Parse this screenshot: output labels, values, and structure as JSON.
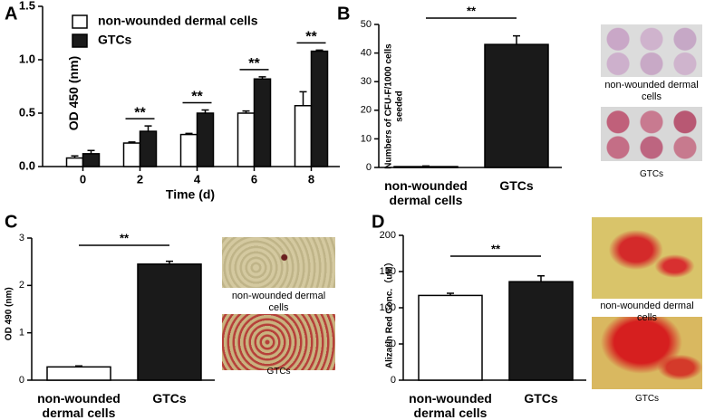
{
  "chart_data": [
    {
      "type": "bar",
      "panel": "A",
      "x_label": "Time (d)",
      "y_label": "OD 450 (nm)",
      "categories": [
        "0",
        "2",
        "4",
        "6",
        "8"
      ],
      "series": [
        {
          "name": "non-wounded dermal cells",
          "color": "#ffffff",
          "values": [
            0.08,
            0.22,
            0.3,
            0.5,
            0.57
          ],
          "errors": [
            0.02,
            0.01,
            0.01,
            0.02,
            0.13
          ]
        },
        {
          "name": "GTCs",
          "color": "#1a1a1a",
          "values": [
            0.12,
            0.33,
            0.5,
            0.82,
            1.08
          ],
          "errors": [
            0.03,
            0.05,
            0.03,
            0.02,
            0.01
          ]
        }
      ],
      "significance": [
        null,
        "**",
        "**",
        "**",
        "**"
      ],
      "ylim": [
        0,
        1.5
      ],
      "yticks": [
        {
          "value": 0,
          "label": "0.0"
        },
        0.5,
        {
          "value": 1,
          "label": "1.0"
        },
        1.5
      ],
      "legend": "upper left"
    },
    {
      "type": "bar",
      "panel": "B",
      "y_label": "Numbers of CFU-F/1000 cells seeded",
      "categories": [
        "non-wounded dermal cells",
        "GTCs"
      ],
      "values": [
        0.3,
        43
      ],
      "errors": [
        0.2,
        3
      ],
      "colors": [
        "#ffffff",
        "#1a1a1a"
      ],
      "significance": "**",
      "ylim": [
        0,
        50
      ],
      "yticks": [
        0,
        10,
        20,
        30,
        40,
        50
      ],
      "image_captions": [
        "non-wounded dermal cells",
        "GTCs"
      ]
    },
    {
      "type": "bar",
      "panel": "C",
      "y_label": "OD 490 (nm)",
      "categories": [
        "non-wounded dermal cells",
        "GTCs"
      ],
      "values": [
        0.28,
        2.45
      ],
      "errors": [
        0.02,
        0.06
      ],
      "colors": [
        "#ffffff",
        "#1a1a1a"
      ],
      "significance": "**",
      "ylim": [
        0,
        3
      ],
      "yticks": [
        0,
        1,
        2,
        3
      ],
      "image_captions": [
        "non-wounded dermal cells",
        "GTCs"
      ]
    },
    {
      "type": "bar",
      "panel": "D",
      "y_label": "Alizarin Red Conc.（uM）",
      "categories": [
        "non-wounded dermal cells",
        "GTCs"
      ],
      "values": [
        117,
        136
      ],
      "errors": [
        3,
        8
      ],
      "colors": [
        "#ffffff",
        "#1a1a1a"
      ],
      "significance": "**",
      "ylim": [
        0,
        200
      ],
      "yticks": [
        0,
        50,
        100,
        150,
        200
      ],
      "image_captions": [
        "non-wounded dermal cells",
        "GTCs"
      ]
    }
  ]
}
